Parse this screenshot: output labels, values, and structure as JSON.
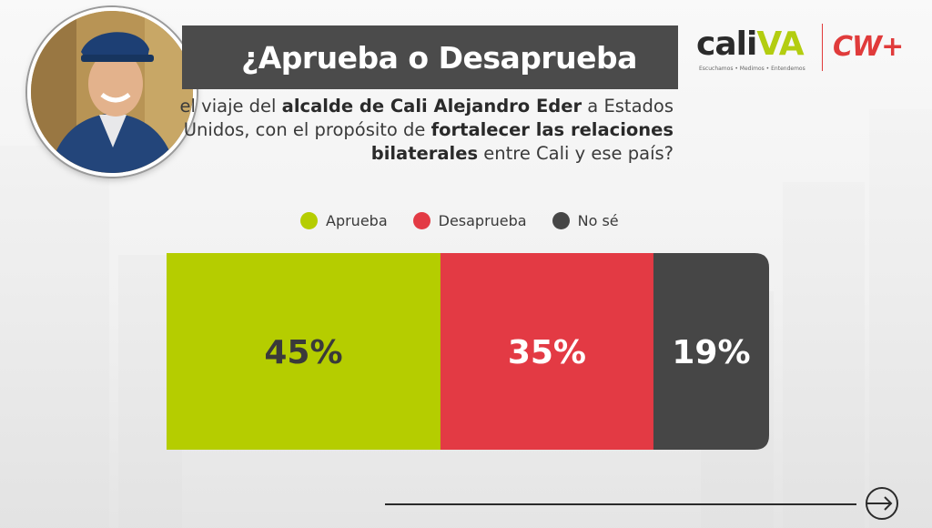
{
  "header": {
    "title": "¿Aprueba o Desaprueba",
    "question_parts": [
      {
        "text": "el viaje del ",
        "bold": false
      },
      {
        "text": "alcalde de Cali Alejandro Eder",
        "bold": true
      },
      {
        "text": " a Estados Unidos, con el propósito de ",
        "bold": false
      },
      {
        "text": "fortalecer las relaciones bilaterales",
        "bold": true
      },
      {
        "text": " entre Cali y ese país?",
        "bold": false
      }
    ]
  },
  "logos": {
    "caliva_main": "cali",
    "caliva_accent": "VA",
    "caliva_tagline": "Escuchamos • Medimos • Entendemos",
    "cw_plus": "CW+"
  },
  "chart_data": {
    "type": "bar",
    "stacked": true,
    "orientation": "horizontal",
    "series": [
      {
        "name": "Aprueba",
        "values": [
          45
        ],
        "color": "#b5cd00",
        "label_color": "#3a3a3a"
      },
      {
        "name": "Desaprueba",
        "values": [
          35
        ],
        "color": "#e33a44",
        "label_color": "#ffffff"
      },
      {
        "name": "No sé",
        "values": [
          19
        ],
        "color": "#464646",
        "label_color": "#ffffff"
      }
    ],
    "data_labels": [
      "45%",
      "35%",
      "19%"
    ],
    "legend_position": "top"
  },
  "icons": {
    "next": "arrow-right-circle-icon"
  }
}
